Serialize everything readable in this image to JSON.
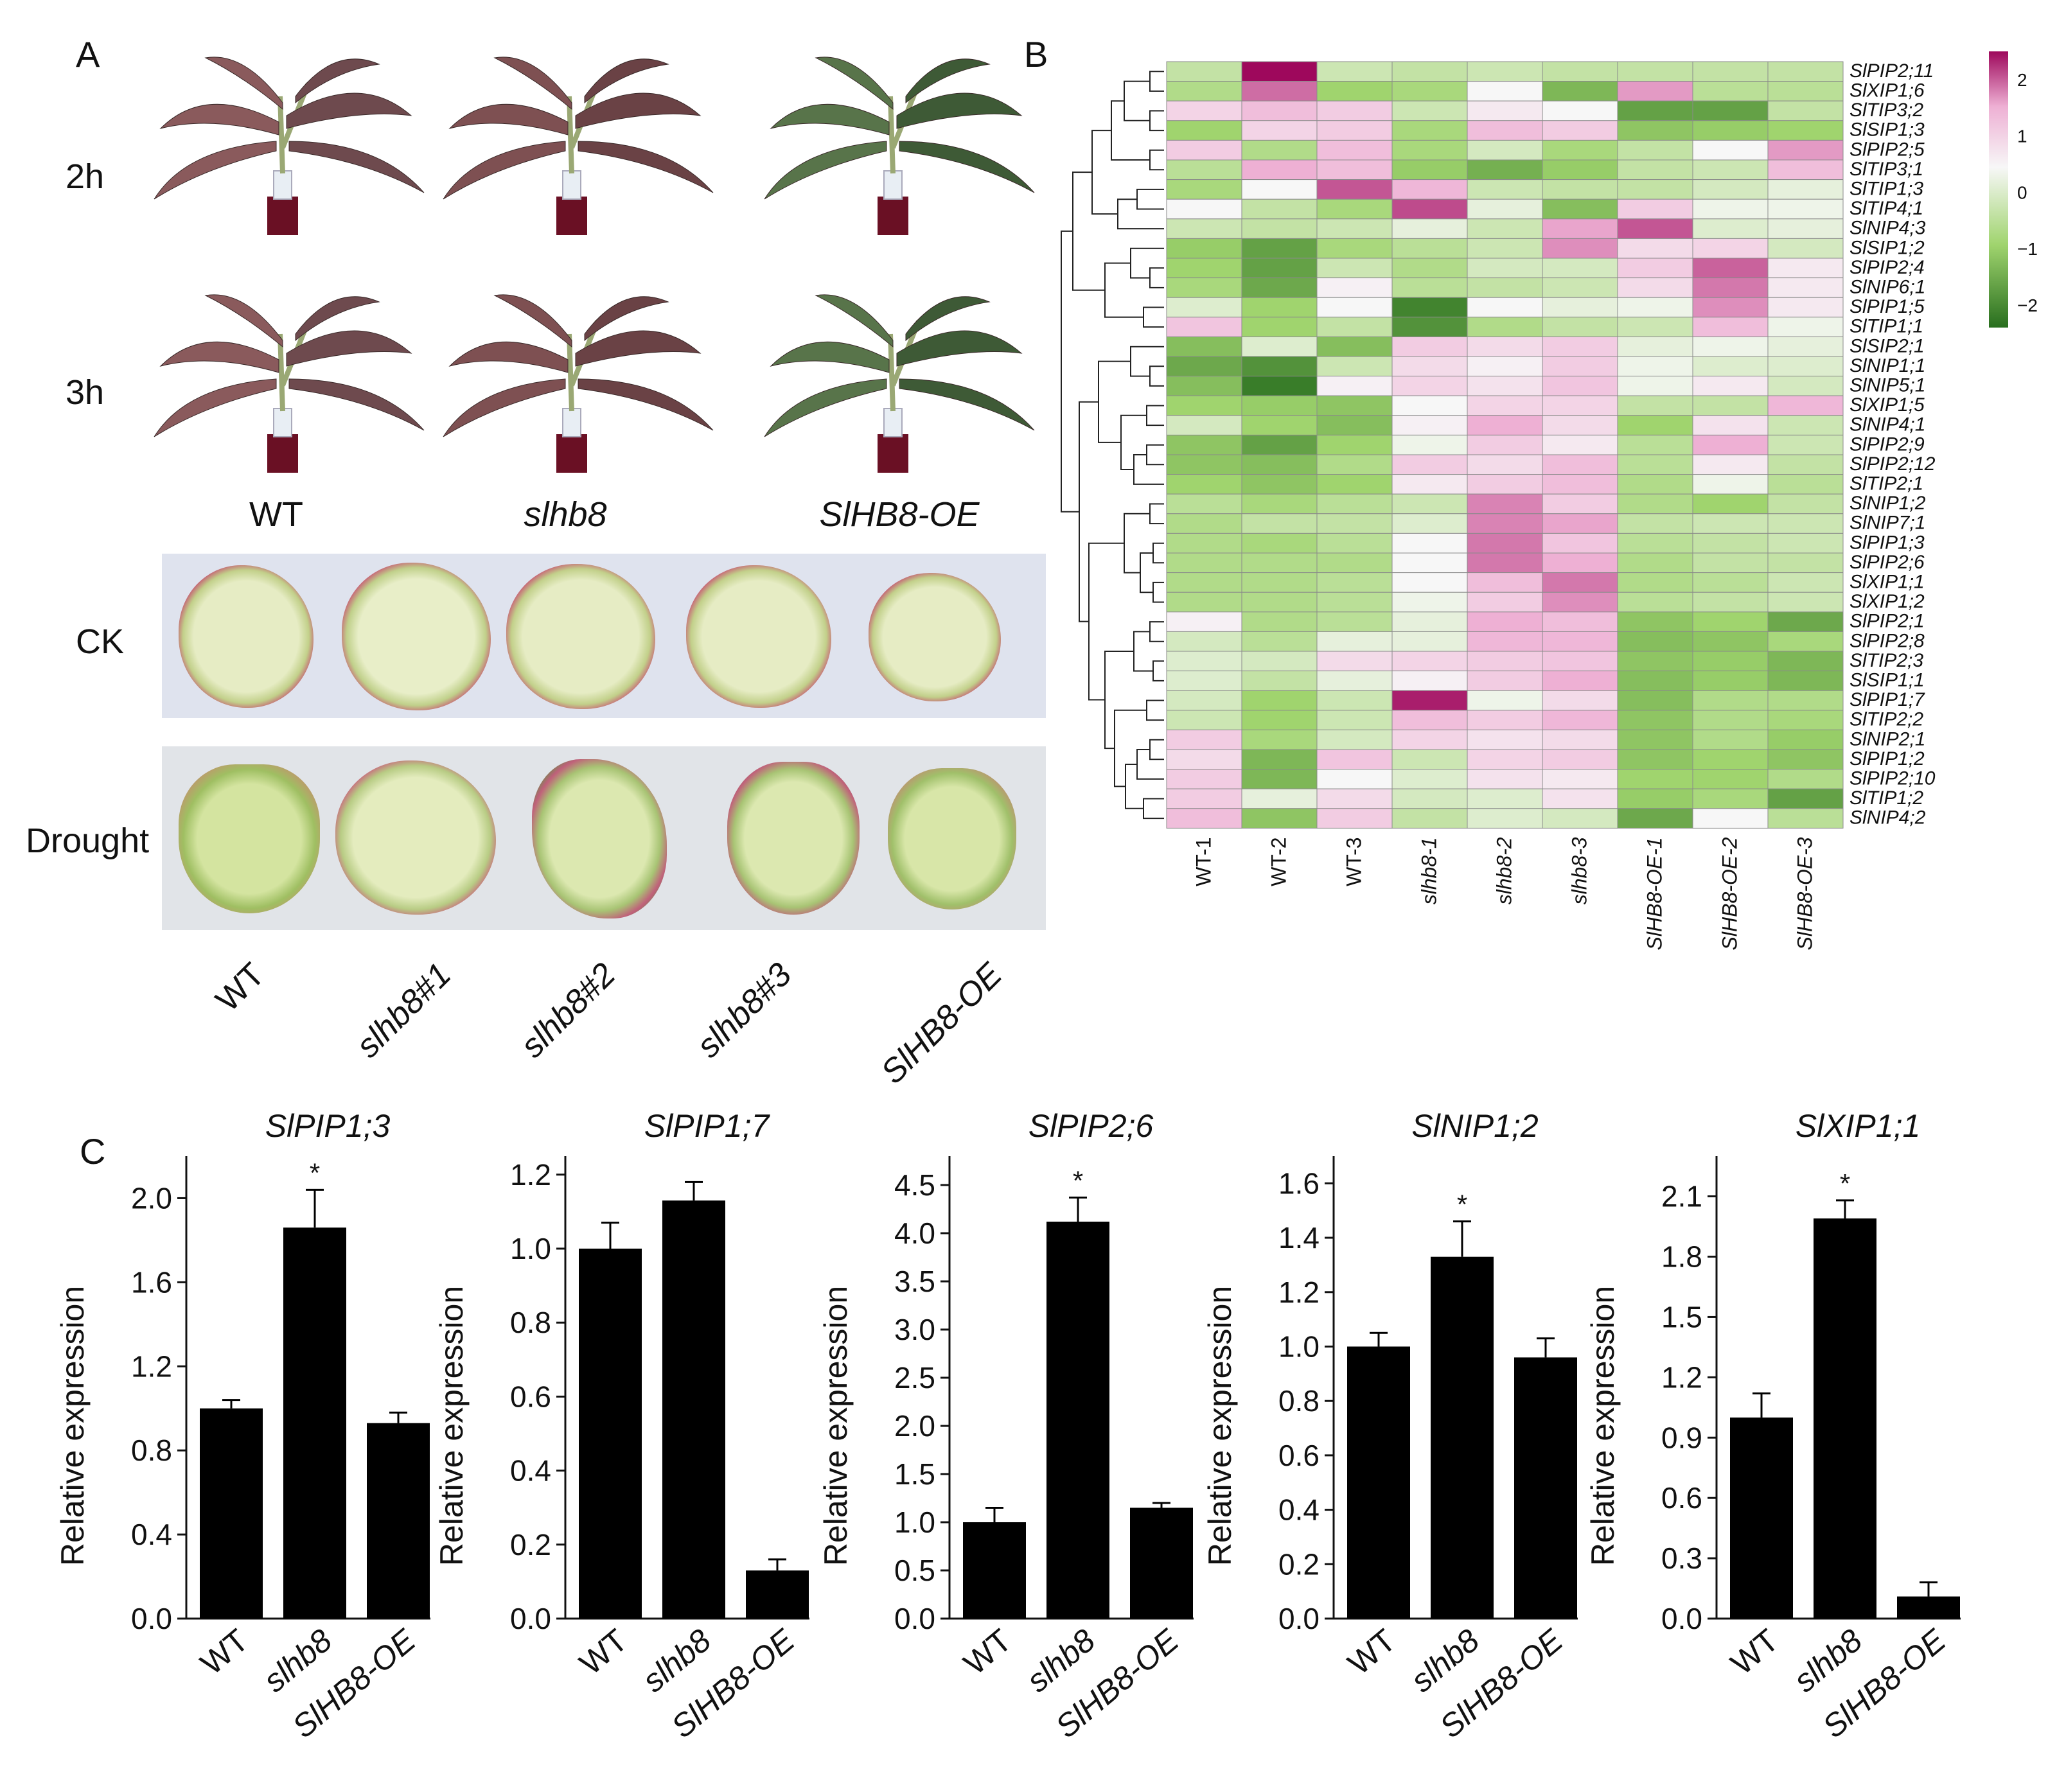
{
  "panels": {
    "a": "A",
    "b": "B",
    "c": "C"
  },
  "panelA": {
    "time_labels": [
      "2h",
      "3h"
    ],
    "genotypes": [
      "WT",
      "slhb8",
      "SlHB8-OE"
    ],
    "treatment_labels": [
      "CK",
      "Drought"
    ],
    "section_labels": [
      "WT",
      "slhb8#1",
      "slhb8#2",
      "slhb8#3",
      "SlHB8-OE"
    ]
  },
  "heatmap": {
    "genes": [
      "SlPIP2;11",
      "SlXIP1;6",
      "SlTIP3;2",
      "SlSIP1;3",
      "SlPIP2;5",
      "SlTIP3;1",
      "SlTIP1;3",
      "SlTIP4;1",
      "SlNIP4;3",
      "SlSIP1;2",
      "SlPIP2;4",
      "SlNIP6;1",
      "SlPIP1;5",
      "SlTIP1;1",
      "SlSIP2;1",
      "SlNIP1;1",
      "SlNIP5;1",
      "SlXIP1;5",
      "SlNIP4;1",
      "SlPIP2;9",
      "SlPIP2;12",
      "SlTIP2;1",
      "SlNIP1;2",
      "SlNIP7;1",
      "SlPIP1;3",
      "SlPIP2;6",
      "SlXIP1;1",
      "SlXIP1;2",
      "SlPIP2;1",
      "SlPIP2;8",
      "SlTIP2;3",
      "SlSIP1;1",
      "SlPIP1;7",
      "SlTIP2;2",
      "SlNIP2;1",
      "SlPIP1;2",
      "SlPIP2;10",
      "SlTIP1;2",
      "SlNIP4;2"
    ],
    "samples": [
      "WT-1",
      "WT-2",
      "WT-3",
      "slhb8-1",
      "slhb8-2",
      "slhb8-3",
      "SlHB8-OE-1",
      "SlHB8-OE-2",
      "SlHB8-OE-3"
    ],
    "colorbar_ticks": [
      "2",
      "1",
      "0",
      "−1",
      "−2"
    ],
    "values": [
      [
        -0.6,
        2.5,
        -0.5,
        -0.6,
        -0.5,
        -0.6,
        -0.6,
        -0.6,
        -0.6
      ],
      [
        -0.8,
        1.6,
        -1.0,
        -0.9,
        0.0,
        -1.4,
        1.2,
        -0.7,
        -0.7
      ],
      [
        0.5,
        0.8,
        0.6,
        -0.5,
        0.2,
        0.0,
        -1.7,
        -1.7,
        -0.6
      ],
      [
        -1.0,
        0.5,
        0.6,
        -0.9,
        0.8,
        0.6,
        -1.2,
        -1.1,
        -1.0
      ],
      [
        0.6,
        -0.8,
        0.8,
        -0.9,
        -0.4,
        -0.9,
        -0.6,
        0.0,
        1.2
      ],
      [
        -0.7,
        1.0,
        0.8,
        -1.1,
        -1.5,
        -1.1,
        -0.6,
        -0.5,
        0.8
      ],
      [
        -0.9,
        0.0,
        1.8,
        0.9,
        -0.5,
        -0.6,
        -0.6,
        -0.4,
        -0.2
      ],
      [
        0.0,
        -0.6,
        -0.9,
        1.9,
        -0.2,
        -1.3,
        0.6,
        -0.1,
        -0.1
      ],
      [
        -0.5,
        -0.6,
        -0.5,
        -0.2,
        -0.5,
        1.1,
        1.8,
        -0.3,
        -0.2
      ],
      [
        -1.1,
        -1.7,
        -0.9,
        -0.7,
        -0.5,
        1.3,
        0.4,
        0.5,
        -0.4
      ],
      [
        -1.0,
        -1.7,
        -0.5,
        -0.8,
        -0.4,
        -0.4,
        0.6,
        1.7,
        0.2
      ],
      [
        -0.9,
        -1.6,
        0.1,
        -0.7,
        -0.6,
        -0.5,
        0.4,
        1.5,
        0.2
      ],
      [
        -0.3,
        -1.0,
        0.0,
        -2.1,
        0.0,
        -0.2,
        -0.1,
        1.3,
        0.2
      ],
      [
        0.7,
        -1.0,
        -0.6,
        -1.9,
        -0.8,
        -0.6,
        -0.5,
        0.8,
        -0.1
      ],
      [
        -1.3,
        -0.3,
        -1.3,
        0.6,
        0.4,
        0.6,
        -0.2,
        -0.1,
        -0.2
      ],
      [
        -1.6,
        -1.9,
        -0.5,
        0.4,
        0.1,
        0.6,
        -0.1,
        -0.3,
        -0.3
      ],
      [
        -1.3,
        -2.2,
        0.1,
        0.5,
        0.3,
        0.7,
        -0.1,
        0.2,
        -0.4
      ],
      [
        -1.0,
        -1.1,
        -1.2,
        0.0,
        0.5,
        0.5,
        -0.6,
        -0.6,
        0.9
      ],
      [
        -0.4,
        -1.0,
        -1.3,
        0.1,
        1.0,
        0.4,
        -1.0,
        0.3,
        -0.5
      ],
      [
        -1.2,
        -1.7,
        -1.0,
        -0.1,
        0.6,
        0.2,
        -0.7,
        1.0,
        -0.5
      ],
      [
        -1.2,
        -1.3,
        -0.8,
        0.6,
        0.4,
        0.8,
        -0.7,
        0.2,
        -0.6
      ],
      [
        -1.0,
        -1.2,
        -1.0,
        0.2,
        0.6,
        0.8,
        -0.8,
        -0.1,
        -0.7
      ],
      [
        -0.7,
        -0.9,
        -0.7,
        -0.5,
        1.4,
        0.6,
        -0.8,
        -1.0,
        -0.6
      ],
      [
        -0.8,
        -0.6,
        -0.6,
        -0.3,
        1.4,
        1.1,
        -0.6,
        -0.5,
        -0.5
      ],
      [
        -0.8,
        -0.9,
        -0.7,
        0.0,
        1.5,
        0.7,
        -0.7,
        -0.6,
        -0.5
      ],
      [
        -0.8,
        -0.8,
        -0.8,
        0.0,
        1.5,
        1.0,
        -0.8,
        -0.6,
        -0.6
      ],
      [
        -0.8,
        -0.8,
        -0.7,
        0.0,
        0.8,
        1.5,
        -0.8,
        -0.7,
        -0.5
      ],
      [
        -0.8,
        -0.8,
        -0.7,
        -0.1,
        0.6,
        1.3,
        -0.7,
        -0.6,
        -0.5
      ],
      [
        0.1,
        -0.8,
        -0.7,
        -0.2,
        1.0,
        0.8,
        -1.2,
        -1.0,
        -1.6
      ],
      [
        -0.4,
        -0.7,
        -0.2,
        -0.2,
        0.9,
        0.9,
        -1.3,
        -1.2,
        -0.9
      ],
      [
        -0.3,
        -0.4,
        0.4,
        0.5,
        0.6,
        0.7,
        -1.2,
        -1.1,
        -1.4
      ],
      [
        -0.3,
        -0.6,
        -0.2,
        0.1,
        0.6,
        1.0,
        -1.3,
        -1.1,
        -1.4
      ],
      [
        -0.4,
        -1.0,
        -0.5,
        2.3,
        -0.1,
        0.4,
        -1.3,
        -0.8,
        -0.8
      ],
      [
        -0.5,
        -1.0,
        -0.5,
        0.8,
        0.6,
        0.9,
        -1.2,
        -0.8,
        -0.9
      ],
      [
        0.6,
        -0.9,
        -0.4,
        0.5,
        0.3,
        0.4,
        -1.2,
        -0.8,
        -1.1
      ],
      [
        0.4,
        -1.4,
        0.7,
        -0.5,
        0.5,
        0.6,
        -1.2,
        -1.0,
        -1.2
      ],
      [
        0.6,
        -1.4,
        0.0,
        -0.3,
        0.3,
        0.2,
        -1.0,
        -1.0,
        -0.8
      ],
      [
        0.6,
        -0.2,
        0.4,
        -0.4,
        -0.3,
        0.3,
        -1.1,
        -0.9,
        -1.7
      ],
      [
        0.8,
        -1.2,
        0.6,
        -0.6,
        -0.3,
        -0.4,
        -1.6,
        0.0,
        -0.7
      ]
    ]
  },
  "bar_panel": {
    "ylabel": "Relative expression",
    "significance_mark": "*"
  },
  "chart_data": [
    {
      "type": "bar",
      "title": "SlPIP1;3",
      "categories": [
        "WT",
        "slhb8",
        "SlHB8-OE"
      ],
      "values": [
        1.0,
        1.86,
        0.93
      ],
      "errors": [
        0.04,
        0.18,
        0.05
      ],
      "significant": [
        false,
        true,
        false
      ],
      "ylim": [
        0,
        2.2
      ],
      "yticks": [
        "0.0",
        "0.4",
        "0.8",
        "1.2",
        "1.6",
        "2.0"
      ],
      "ylabel": "Relative expression"
    },
    {
      "type": "bar",
      "title": "SlPIP1;7",
      "categories": [
        "WT",
        "slhb8",
        "SlHB8-OE"
      ],
      "values": [
        1.0,
        1.13,
        0.13
      ],
      "errors": [
        0.07,
        0.05,
        0.03
      ],
      "significant": [
        false,
        false,
        false
      ],
      "ylim": [
        0,
        1.25
      ],
      "yticks": [
        "0.0",
        "0.2",
        "0.4",
        "0.6",
        "0.8",
        "1.0",
        "1.2"
      ],
      "ylabel": "Relative expression"
    },
    {
      "type": "bar",
      "title": "SlPIP2;6",
      "categories": [
        "WT",
        "slhb8",
        "SlHB8-OE"
      ],
      "values": [
        1.0,
        4.12,
        1.15
      ],
      "errors": [
        0.15,
        0.25,
        0.05
      ],
      "significant": [
        false,
        true,
        false
      ],
      "ylim": [
        0,
        4.8
      ],
      "yticks": [
        "0.0",
        "0.5",
        "1.0",
        "1.5",
        "2.0",
        "2.5",
        "3.0",
        "3.5",
        "4.0",
        "4.5"
      ],
      "ylabel": "Relative expression"
    },
    {
      "type": "bar",
      "title": "SlNIP1;2",
      "categories": [
        "WT",
        "slhb8",
        "SlHB8-OE"
      ],
      "values": [
        1.0,
        1.33,
        0.96
      ],
      "errors": [
        0.05,
        0.13,
        0.07
      ],
      "significant": [
        false,
        true,
        false
      ],
      "ylim": [
        0,
        1.7
      ],
      "yticks": [
        "0.0",
        "0.2",
        "0.4",
        "0.6",
        "0.8",
        "1.0",
        "1.2",
        "1.4",
        "1.6"
      ],
      "ylabel": "Relative expression"
    },
    {
      "type": "bar",
      "title": "SlXIP1;1",
      "categories": [
        "WT",
        "slhb8",
        "SlHB8-OE"
      ],
      "values": [
        1.0,
        1.99,
        0.11
      ],
      "errors": [
        0.12,
        0.09,
        0.07
      ],
      "significant": [
        false,
        true,
        false
      ],
      "ylim": [
        0,
        2.3
      ],
      "yticks": [
        "0.0",
        "0.3",
        "0.6",
        "0.9",
        "1.2",
        "1.5",
        "1.8",
        "2.1"
      ],
      "ylabel": "Relative expression"
    }
  ]
}
